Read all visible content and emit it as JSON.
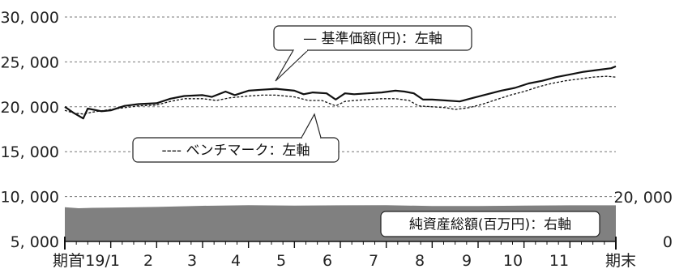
{
  "chart_data": {
    "type": "line",
    "left_axis": {
      "ticks": [
        "30, 000",
        "25, 000",
        "20, 000",
        "15, 000",
        "10, 000",
        "5, 000"
      ],
      "tick_values": [
        30000,
        25000,
        20000,
        15000,
        10000,
        5000
      ],
      "range": [
        5000,
        30000
      ]
    },
    "right_axis": {
      "ticks": [
        "20, 000",
        "0"
      ],
      "tick_values": [
        20000,
        0
      ],
      "range": [
        0,
        20000
      ]
    },
    "x_axis": {
      "labels": [
        "期首",
        "'19/1",
        "2",
        "3",
        "4",
        "5",
        "6",
        "7",
        "8",
        "9",
        "10",
        "11",
        "期末"
      ]
    },
    "grid": true,
    "series": [
      {
        "name": "— 基準価額(円)：左軸",
        "axis": "left",
        "style": "solid",
        "color": "#111111",
        "points": [
          [
            0,
            20000
          ],
          [
            0.2,
            19300
          ],
          [
            0.4,
            18700
          ],
          [
            0.5,
            19800
          ],
          [
            0.8,
            19500
          ],
          [
            1,
            19600
          ],
          [
            1.3,
            20100
          ],
          [
            1.6,
            20300
          ],
          [
            2,
            20400
          ],
          [
            2.3,
            20900
          ],
          [
            2.6,
            21200
          ],
          [
            3,
            21300
          ],
          [
            3.2,
            21100
          ],
          [
            3.5,
            21700
          ],
          [
            3.7,
            21300
          ],
          [
            4,
            21800
          ],
          [
            4.3,
            21900
          ],
          [
            4.6,
            22000
          ],
          [
            5,
            21800
          ],
          [
            5.2,
            21400
          ],
          [
            5.4,
            21600
          ],
          [
            5.7,
            21500
          ],
          [
            5.9,
            20800
          ],
          [
            6.1,
            21500
          ],
          [
            6.3,
            21400
          ],
          [
            6.6,
            21500
          ],
          [
            6.9,
            21600
          ],
          [
            7.2,
            21800
          ],
          [
            7.4,
            21700
          ],
          [
            7.6,
            21500
          ],
          [
            7.8,
            20800
          ],
          [
            8,
            20800
          ],
          [
            8.3,
            20700
          ],
          [
            8.6,
            20600
          ],
          [
            8.9,
            21000
          ],
          [
            9.2,
            21400
          ],
          [
            9.5,
            21800
          ],
          [
            9.8,
            22100
          ],
          [
            10.1,
            22600
          ],
          [
            10.4,
            22900
          ],
          [
            10.7,
            23300
          ],
          [
            11,
            23600
          ],
          [
            11.3,
            23900
          ],
          [
            11.6,
            24100
          ],
          [
            11.9,
            24300
          ],
          [
            12,
            24500
          ]
        ]
      },
      {
        "name": "---- ベンチマーク：左軸",
        "axis": "left",
        "style": "dashed",
        "color": "#111111",
        "points": [
          [
            0,
            19600
          ],
          [
            0.2,
            19300
          ],
          [
            0.4,
            19200
          ],
          [
            0.6,
            19400
          ],
          [
            1,
            19700
          ],
          [
            1.3,
            19900
          ],
          [
            1.6,
            20100
          ],
          [
            2,
            20200
          ],
          [
            2.3,
            20600
          ],
          [
            2.6,
            20900
          ],
          [
            3,
            20900
          ],
          [
            3.3,
            20700
          ],
          [
            3.6,
            21000
          ],
          [
            4,
            21200
          ],
          [
            4.3,
            21300
          ],
          [
            4.6,
            21300
          ],
          [
            5,
            21100
          ],
          [
            5.3,
            20700
          ],
          [
            5.6,
            20700
          ],
          [
            5.9,
            20100
          ],
          [
            6.1,
            20600
          ],
          [
            6.3,
            20700
          ],
          [
            6.6,
            20800
          ],
          [
            6.9,
            20900
          ],
          [
            7.2,
            20900
          ],
          [
            7.5,
            20700
          ],
          [
            7.7,
            20100
          ],
          [
            8,
            20000
          ],
          [
            8.3,
            19900
          ],
          [
            8.5,
            19700
          ],
          [
            8.8,
            19900
          ],
          [
            9.1,
            20300
          ],
          [
            9.4,
            20800
          ],
          [
            9.7,
            21300
          ],
          [
            10,
            21700
          ],
          [
            10.3,
            22200
          ],
          [
            10.6,
            22600
          ],
          [
            10.9,
            22900
          ],
          [
            11.2,
            23100
          ],
          [
            11.5,
            23300
          ],
          [
            11.8,
            23400
          ],
          [
            12,
            23300
          ]
        ]
      },
      {
        "name": "純資産総額(百万円)：右軸",
        "axis": "right",
        "style": "area",
        "color": "#808080",
        "points": [
          [
            0,
            15400
          ],
          [
            0.3,
            14900
          ],
          [
            0.6,
            15100
          ],
          [
            1,
            15200
          ],
          [
            2,
            15500
          ],
          [
            3,
            16000
          ],
          [
            4,
            16300
          ],
          [
            5,
            16100
          ],
          [
            6,
            16200
          ],
          [
            7,
            16300
          ],
          [
            8,
            15900
          ],
          [
            9,
            15900
          ],
          [
            10,
            16100
          ],
          [
            11,
            16200
          ],
          [
            12,
            16200
          ]
        ]
      }
    ]
  }
}
